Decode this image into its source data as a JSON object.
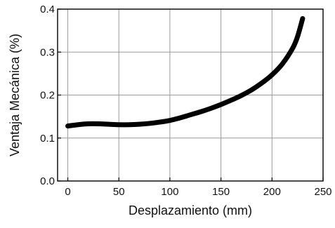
{
  "chart_data": {
    "type": "line",
    "title": "",
    "xlabel": "Desplazamiento (mm)",
    "ylabel": "Ventaja Mecánica (%)",
    "xlim": [
      -10,
      250
    ],
    "ylim": [
      0,
      0.4
    ],
    "x_ticks": [
      0,
      50,
      100,
      150,
      200,
      250
    ],
    "y_ticks": [
      0,
      0.1,
      0.2,
      0.3,
      0.4
    ],
    "x_tick_labels": [
      "0",
      "50",
      "100",
      "150",
      "200",
      "250"
    ],
    "y_tick_labels": [
      "0.0",
      "0.1",
      "0.2",
      "0.3",
      "0.4"
    ],
    "grid": true,
    "legend": "none",
    "series": [
      {
        "color": "#000000",
        "x": [
          0,
          10,
          20,
          30,
          40,
          50,
          60,
          70,
          80,
          90,
          100,
          110,
          120,
          130,
          140,
          150,
          160,
          170,
          180,
          190,
          200,
          210,
          220,
          225,
          230
        ],
        "y": [
          0.128,
          0.131,
          0.133,
          0.133,
          0.132,
          0.131,
          0.131,
          0.132,
          0.134,
          0.137,
          0.141,
          0.147,
          0.154,
          0.161,
          0.169,
          0.178,
          0.188,
          0.199,
          0.212,
          0.228,
          0.247,
          0.272,
          0.308,
          0.336,
          0.378
        ]
      }
    ]
  }
}
